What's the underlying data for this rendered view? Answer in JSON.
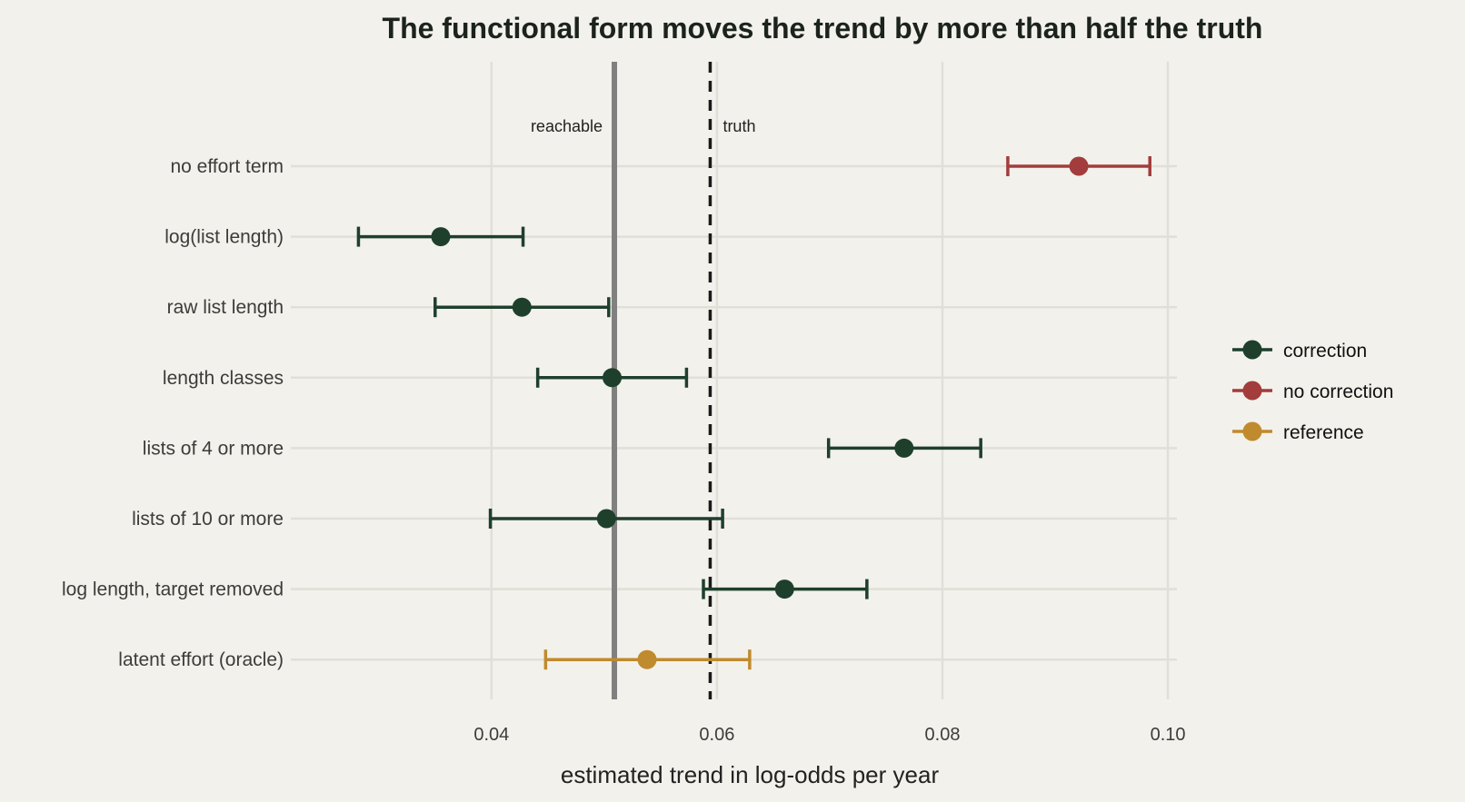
{
  "chart_data": {
    "type": "scatter",
    "subtype": "dot-and-whisker",
    "title": "The functional form moves the trend by more than half the truth",
    "xlabel": "estimated trend in log-odds per year",
    "ylabel": "",
    "xlim": [
      0.0222,
      0.1008
    ],
    "xticks": [
      0.04,
      0.06,
      0.08,
      0.1
    ],
    "xtick_labels": [
      "0.04",
      "0.06",
      "0.08",
      "0.10"
    ],
    "grid": true,
    "legend_position": "right",
    "colors": {
      "correction": "#1e3f2c",
      "no correction": "#a33c3c",
      "reference": "#c08a2e",
      "reachable_line": "#808080",
      "truth_line": "#1a1a1a",
      "background": "#f2f1eb",
      "grid": "#e0dfd8"
    },
    "legend": [
      {
        "label": "correction",
        "color": "#1e3f2c"
      },
      {
        "label": "no correction",
        "color": "#a33c3c"
      },
      {
        "label": "reference",
        "color": "#c08a2e"
      }
    ],
    "reference_lines": [
      {
        "label": "reachable",
        "x": 0.0509,
        "style": "solid"
      },
      {
        "label": "truth",
        "x": 0.0594,
        "style": "dashed"
      }
    ],
    "points": [
      {
        "label": "no effort term",
        "estimate": 0.0921,
        "low": 0.0858,
        "high": 0.0984,
        "group": "no correction"
      },
      {
        "label": "log(list length)",
        "estimate": 0.0355,
        "low": 0.0282,
        "high": 0.0428,
        "group": "correction"
      },
      {
        "label": "raw list length",
        "estimate": 0.0427,
        "low": 0.035,
        "high": 0.0504,
        "group": "correction"
      },
      {
        "label": "length classes",
        "estimate": 0.0507,
        "low": 0.0441,
        "high": 0.0573,
        "group": "correction"
      },
      {
        "label": "lists of 4 or more",
        "estimate": 0.0766,
        "low": 0.0699,
        "high": 0.0834,
        "group": "correction"
      },
      {
        "label": "lists of 10 or more",
        "estimate": 0.0502,
        "low": 0.0399,
        "high": 0.0605,
        "group": "correction"
      },
      {
        "label": "log length, target removed",
        "estimate": 0.066,
        "low": 0.0588,
        "high": 0.0733,
        "group": "correction"
      },
      {
        "label": "latent effort (oracle)",
        "estimate": 0.0538,
        "low": 0.0448,
        "high": 0.0629,
        "group": "reference"
      }
    ]
  }
}
